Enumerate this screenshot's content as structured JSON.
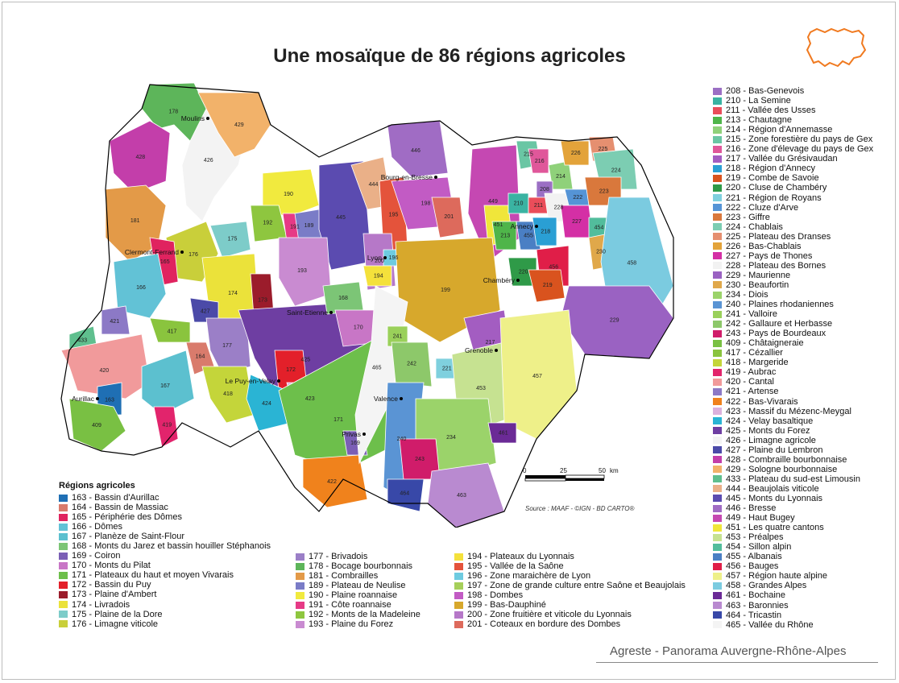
{
  "title": "Une mosaïque de 86 régions agricoles",
  "legend_title": "Régions agricoles",
  "source": "Source : MAAF - ©IGN - BD CARTO®",
  "footer": "Agreste - Panorama Auvergne-Rhône-Alpes",
  "scale": {
    "ticks": [
      "0",
      "25",
      "50"
    ],
    "unit": "km"
  },
  "cities": [
    {
      "name": "Moulins"
    },
    {
      "name": "Bourg-en-Bresse"
    },
    {
      "name": "Clermont-Ferrand"
    },
    {
      "name": "Lyon"
    },
    {
      "name": "Annecy"
    },
    {
      "name": "Chambéry"
    },
    {
      "name": "Saint-Etienne"
    },
    {
      "name": "Grenoble"
    },
    {
      "name": "Le Puy-en-Velay"
    },
    {
      "name": "Aurillac"
    },
    {
      "name": "Valence"
    },
    {
      "name": "Privas"
    }
  ],
  "legend_bottom_col1": [
    {
      "label": "163 - Bassin d'Aurillac",
      "color": "#1f6fb4"
    },
    {
      "label": "164 - Bassin de Massiac",
      "color": "#d97b6c"
    },
    {
      "label": "165 - Périphérie des Dômes",
      "color": "#e0235f"
    },
    {
      "label": "166 - Dômes",
      "color": "#62c2d6"
    },
    {
      "label": "167 - Planèze de Saint-Flour",
      "color": "#5cc0cf"
    },
    {
      "label": "168 - Monts du Jarez et bassin houiller Stéphanois",
      "color": "#7cc576"
    },
    {
      "label": "169 - Coiron",
      "color": "#7b5fb5"
    },
    {
      "label": "170 - Monts du Pilat",
      "color": "#c876c6"
    },
    {
      "label": "171 - Plateaux du haut et moyen Vivarais",
      "color": "#6dbf4b"
    },
    {
      "label": "172 - Bassin du Puy",
      "color": "#e3202a"
    },
    {
      "label": "173 - Plaine d'Ambert",
      "color": "#9b1c2b"
    },
    {
      "label": "174 - Livradois",
      "color": "#ebe23a"
    },
    {
      "label": "175 - Plaine de la Dore",
      "color": "#7dccc9"
    },
    {
      "label": "176 - Limagne viticole",
      "color": "#c9cf3a"
    }
  ],
  "legend_bottom_col2": [
    {
      "label": "177 - Brivadois",
      "color": "#9b7fc7"
    },
    {
      "label": "178 - Bocage bourbonnais",
      "color": "#5db55a"
    },
    {
      "label": "181 - Combrailles",
      "color": "#e39a48"
    },
    {
      "label": "189 - Plateau de Neulise",
      "color": "#7a7cc7"
    },
    {
      "label": "190 - Plaine roannaise",
      "color": "#f1ea3e"
    },
    {
      "label": "191 - Côte roannaise",
      "color": "#e63a86"
    },
    {
      "label": "192 - Monts de la Madeleine",
      "color": "#8ec63f"
    },
    {
      "label": "193 - Plaine du Forez",
      "color": "#c98bd1"
    }
  ],
  "legend_bottom_col3": [
    {
      "label": "194 - Plateaux du Lyonnais",
      "color": "#f4e13b"
    },
    {
      "label": "195 - Vallée de la Saône",
      "color": "#e4533b"
    },
    {
      "label": "196 - Zone maraichère de Lyon",
      "color": "#6ecbe0"
    },
    {
      "label": "197 - Zone de grande culture entre Saône et Beaujolais",
      "color": "#a6cf5a"
    },
    {
      "label": "198 - Dombes",
      "color": "#c25bc4"
    },
    {
      "label": "199 - Bas-Dauphiné",
      "color": "#d7a82c"
    },
    {
      "label": "200 - Zone fruitière et viticole du Lyonnais",
      "color": "#b678c8"
    },
    {
      "label": "201 - Coteaux en bordure des Dombes",
      "color": "#dd6a5c"
    }
  ],
  "legend_right": [
    {
      "label": "208 - Bas-Genevois",
      "color": "#9b6fc4"
    },
    {
      "label": "210 - La Semine",
      "color": "#3ab3a2"
    },
    {
      "label": "211 - Vallée des Usses",
      "color": "#ea4d5a"
    },
    {
      "label": "213 - Chautagne",
      "color": "#4fb54a"
    },
    {
      "label": "214 - Région d'Annemasse",
      "color": "#8fd17a"
    },
    {
      "label": "215 - Zone forestière du pays de Gex",
      "color": "#6ac6a4"
    },
    {
      "label": "216 - Zone d'élevage du pays de Gex",
      "color": "#e0579a"
    },
    {
      "label": "217 - Vallée du Grésivaudan",
      "color": "#a35dc1"
    },
    {
      "label": "218 - Région d'Annecy",
      "color": "#2a9fd4"
    },
    {
      "label": "219 - Combe de Savoie",
      "color": "#d9531e"
    },
    {
      "label": "220 - Cluse de Chambéry",
      "color": "#2f9a48"
    },
    {
      "label": "221 - Région de Royans",
      "color": "#7fd0de"
    },
    {
      "label": "222 - Cluze d'Arve",
      "color": "#5594d6"
    },
    {
      "label": "223 - Giffre",
      "color": "#d9783c"
    },
    {
      "label": "224 - Chablais",
      "color": "#7ccdb2"
    },
    {
      "label": "225 - Plateau des Dranses",
      "color": "#e58f70"
    },
    {
      "label": "226 - Bas-Chablais",
      "color": "#e3a33a"
    },
    {
      "label": "227 - Pays de Thones",
      "color": "#d42fa5"
    },
    {
      "label": "228 - Plateau des Bornes",
      "color": "#f2f2f2"
    },
    {
      "label": "229 - Maurienne",
      "color": "#9a62c2"
    },
    {
      "label": "230 - Beaufortin",
      "color": "#e0a84a"
    },
    {
      "label": "234 - Diois",
      "color": "#9bd36a"
    },
    {
      "label": "240 - Plaines rhodaniennes",
      "color": "#5a94d4"
    },
    {
      "label": "241 - Valloire",
      "color": "#9ad05a"
    },
    {
      "label": "242 - Gallaure et Herbasse",
      "color": "#8dc86a"
    },
    {
      "label": "243 - Pays de Bourdeaux",
      "color": "#d01c6a"
    },
    {
      "label": "409 - Châtaigneraie",
      "color": "#79c043"
    },
    {
      "label": "417 - Cézallier",
      "color": "#8ac43e"
    },
    {
      "label": "418 - Margeride",
      "color": "#c4d53a"
    },
    {
      "label": "419 - Aubrac",
      "color": "#e2246c"
    },
    {
      "label": "420 - Cantal",
      "color": "#f19a9b"
    },
    {
      "label": "421 - Artense",
      "color": "#8c79c6"
    },
    {
      "label": "422 - Bas-Vivarais",
      "color": "#f0821c"
    },
    {
      "label": "423 - Massif du Mézenc-Meygal",
      "color": "#dcb1dd"
    },
    {
      "label": "424 - Velay basaltique",
      "color": "#2ab4d4"
    },
    {
      "label": "425 - Monts du Forez",
      "color": "#6e3ea2"
    },
    {
      "label": "426 - Limagne agricole",
      "color": "#f3f3f3"
    },
    {
      "label": "427 - Plaine du Lembron",
      "color": "#4b4aa8"
    },
    {
      "label": "428 - Combraille bourbonnaise",
      "color": "#c33eaa"
    },
    {
      "label": "429 - Sologne bourbonnaise",
      "color": "#f2b26a"
    },
    {
      "label": "433 - Plateau du sud-est Limousin",
      "color": "#5fbf8e"
    },
    {
      "label": "444 - Beaujolais viticole",
      "color": "#eab088"
    },
    {
      "label": "445 - Monts du Lyonnais",
      "color": "#5b4bb0"
    },
    {
      "label": "446 - Bresse",
      "color": "#a06cc4"
    },
    {
      "label": "449 - Haut Bugey",
      "color": "#c548b2"
    },
    {
      "label": "451 - Les quatre cantons",
      "color": "#f0e63a"
    },
    {
      "label": "453 - Préalpes",
      "color": "#c6e291"
    },
    {
      "label": "454 - Sillon alpin",
      "color": "#52bd9c"
    },
    {
      "label": "455 - Albanais",
      "color": "#4a7fc4"
    },
    {
      "label": "456 - Bauges",
      "color": "#e01e48"
    },
    {
      "label": "457 - Région haute alpine",
      "color": "#eef089"
    },
    {
      "label": "458 - Grandes Alpes",
      "color": "#7bcbe0"
    },
    {
      "label": "461 - Bochaine",
      "color": "#6b2a96"
    },
    {
      "label": "463 - Baronnies",
      "color": "#b98ad0"
    },
    {
      "label": "464 - Tricastin",
      "color": "#3848a8"
    },
    {
      "label": "465 - Vallée du Rhône",
      "color": "#f4f4f4"
    }
  ],
  "map_codes": [
    "178",
    "429",
    "428",
    "426",
    "181",
    "175",
    "176",
    "165",
    "166",
    "174",
    "173",
    "427",
    "421",
    "417",
    "433",
    "420",
    "167",
    "164",
    "177",
    "418",
    "163",
    "409",
    "419",
    "190",
    "192",
    "191",
    "189",
    "445",
    "193",
    "425",
    "168",
    "170",
    "172",
    "424",
    "423",
    "171",
    "169",
    "422",
    "444",
    "195",
    "446",
    "198",
    "201",
    "449",
    "451",
    "215",
    "216",
    "214",
    "226",
    "225",
    "224",
    "208",
    "210",
    "211",
    "228",
    "222",
    "223",
    "227",
    "213",
    "455",
    "218",
    "454",
    "230",
    "458",
    "456",
    "220",
    "219",
    "229",
    "200",
    "196",
    "194",
    "199",
    "465",
    "241",
    "242",
    "217",
    "221",
    "453",
    "457",
    "240",
    "234",
    "243",
    "461",
    "463",
    "464"
  ]
}
